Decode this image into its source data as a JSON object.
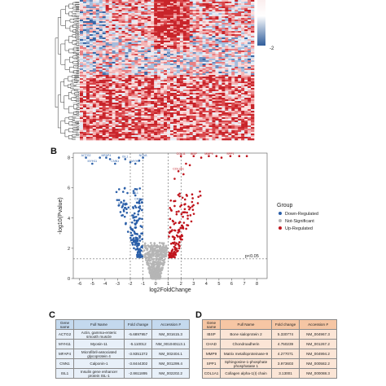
{
  "panels": {
    "b_letter": "B",
    "c_letter": "C",
    "d_letter": "D"
  },
  "heatmap": {
    "colorbar_min_label": "-2"
  },
  "volcano": {
    "chart_data": {
      "type": "scatter",
      "title": "",
      "xlabel": "log2FoldChange",
      "ylabel": "-log10(Pvalue)",
      "xlim": [
        -6.5,
        8.8
      ],
      "ylim": [
        0,
        8.3
      ],
      "xticks": [
        -6,
        -5,
        -4,
        -3,
        -2,
        -1,
        0,
        1,
        2,
        3,
        4,
        5,
        6,
        7,
        8
      ],
      "yticks": [
        0,
        2,
        4,
        6,
        8
      ],
      "threshold_lines": {
        "x": [
          -2,
          -1,
          1,
          2
        ],
        "y": 1.3
      },
      "threshold_label": "p<0.05",
      "legend_title": "Group",
      "legend_position": "right",
      "series": [
        {
          "name": "Down-Regulated",
          "color": "#2b5fa8"
        },
        {
          "name": "Not-Significant",
          "color": "#b5b5b5"
        },
        {
          "name": "Up-Regulated",
          "color": "#c0151d"
        }
      ],
      "gene_labels": [
        {
          "text": "ACTG2",
          "x": -5.5,
          "y": 8.0,
          "side": "down"
        },
        {
          "text": "MYH11",
          "x": -5.0,
          "y": 7.6,
          "side": "down"
        },
        {
          "text": "MFAP4",
          "x": -3.9,
          "y": 8.0,
          "side": "down"
        },
        {
          "text": "CNN1",
          "x": -3.2,
          "y": 7.6,
          "side": "down"
        },
        {
          "text": "ISL1",
          "x": -2.4,
          "y": 7.9,
          "side": "down"
        },
        {
          "text": "MYH9",
          "x": -1.6,
          "y": 7.6,
          "side": "down"
        },
        {
          "text": "NOVA",
          "x": -1.0,
          "y": 8.0,
          "side": "down"
        },
        {
          "text": "ISL1",
          "x": -1.6,
          "y": 5.5,
          "side": "down"
        },
        {
          "text": "NPTX1",
          "x": -2.6,
          "y": 4.8,
          "side": "down"
        },
        {
          "text": "CRTL1",
          "x": -1.3,
          "y": 5.1,
          "side": "down"
        },
        {
          "text": "COL11",
          "x": 2.0,
          "y": 8.1,
          "side": "up"
        },
        {
          "text": "IBSP",
          "x": 3.0,
          "y": 8.1,
          "side": "up"
        },
        {
          "text": "MMP9",
          "x": 4.2,
          "y": 8.1,
          "side": "up"
        },
        {
          "text": "SPP1",
          "x": 5.9,
          "y": 8.1,
          "side": "up"
        },
        {
          "text": "COL3A1",
          "x": 1.8,
          "y": 7.1,
          "side": "up"
        }
      ]
    }
  },
  "table_c": {
    "headers": [
      "Gene name",
      "Full Name",
      "Fold change",
      "Accession #"
    ],
    "rows": [
      [
        "ACTG2",
        "Actin, gamma-enteric smooth muscle",
        "-5.6897957",
        "NM_001615.3"
      ],
      [
        "MYH11",
        "Myosin-11",
        "-5.110012",
        "NM_001040113.1"
      ],
      [
        "MFAP4",
        "Microfibril-associated glycoprotein 4",
        "-3.9351372",
        "NM_002404.1"
      ],
      [
        "CNN1",
        "Calponin-1",
        "-3.8444302",
        "NM_001299.4"
      ],
      [
        "ISL1",
        "Insulin gene enhancer protein ISL-1",
        "-2.8611895",
        "NM_002202.2"
      ]
    ]
  },
  "table_d": {
    "headers": [
      "Gene name",
      "Full Name",
      "Fold change",
      "Accession #"
    ],
    "rows": [
      [
        "IBSP",
        "Bone sialoprotein 2",
        "5.330774",
        "NM_004967.3"
      ],
      [
        "CHAD",
        "Chondroadherin",
        "4.750239",
        "NM_001267.2"
      ],
      [
        "MMP9",
        "Matrix metalloproteinase-9",
        "4.277071",
        "NM_004994.2"
      ],
      [
        "SPP1",
        "Sphingosine-1-phosphate phosphatase 1",
        "3.973603",
        "NM_000582.2"
      ],
      [
        "COL1A1",
        "Collagen alpha-1(I) chain",
        "3.13001",
        "NM_000088.3"
      ]
    ]
  }
}
